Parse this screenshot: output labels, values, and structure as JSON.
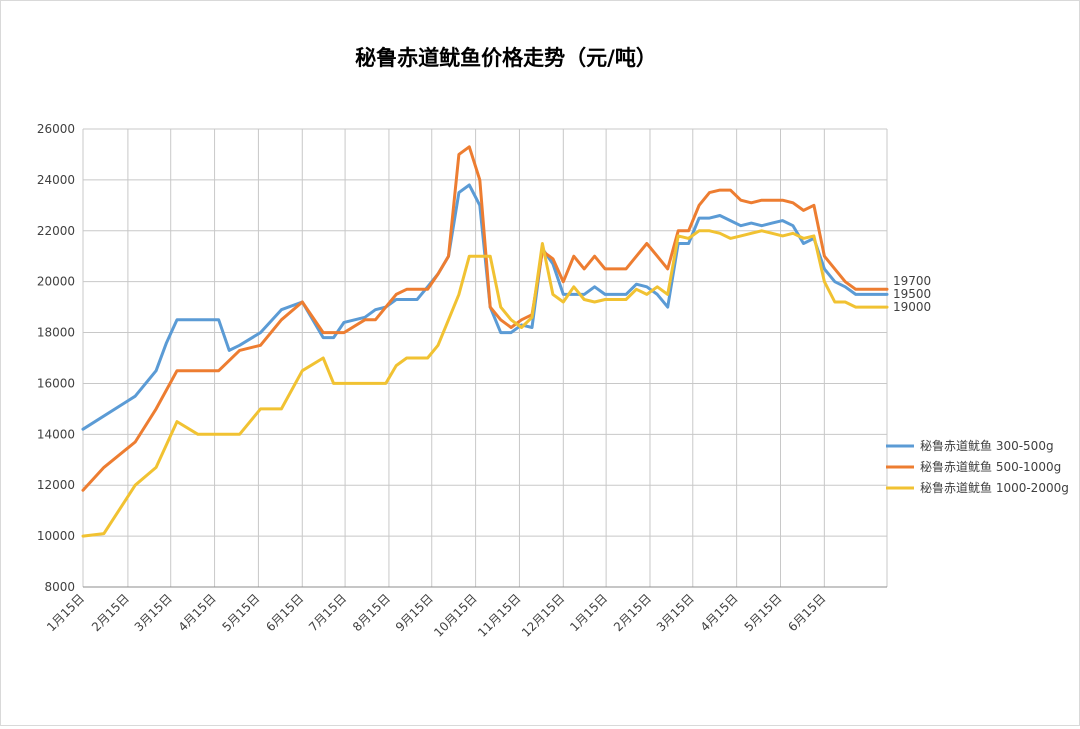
{
  "chart_data": {
    "type": "line",
    "title": "秘鲁赤道鱿鱼价格走势（元/吨）",
    "xlabel": "",
    "ylabel": "",
    "ylim": [
      8000,
      26000
    ],
    "yticks": [
      8000,
      10000,
      12000,
      14000,
      16000,
      18000,
      20000,
      22000,
      24000,
      26000
    ],
    "grid": true,
    "legend_position": "right",
    "x_range": [
      0,
      77
    ],
    "x_ticks": [
      {
        "x": 0,
        "label": "1月15日"
      },
      {
        "x": 4.3,
        "label": "2月15日"
      },
      {
        "x": 8.4,
        "label": "3月15日"
      },
      {
        "x": 12.6,
        "label": "4月15日"
      },
      {
        "x": 16.8,
        "label": "5月15日"
      },
      {
        "x": 21,
        "label": "6月15日"
      },
      {
        "x": 25.1,
        "label": "7月15日"
      },
      {
        "x": 29.3,
        "label": "8月15日"
      },
      {
        "x": 33.4,
        "label": "9月15日"
      },
      {
        "x": 37.6,
        "label": "10月15日"
      },
      {
        "x": 41.8,
        "label": "11月15日"
      },
      {
        "x": 46,
        "label": "12月15日"
      },
      {
        "x": 50.1,
        "label": "1月15日"
      },
      {
        "x": 54.3,
        "label": "2月15日"
      },
      {
        "x": 58.4,
        "label": "3月15日"
      },
      {
        "x": 62.6,
        "label": "4月15日"
      },
      {
        "x": 66.8,
        "label": "5月15日"
      },
      {
        "x": 71,
        "label": "6月15日"
      }
    ],
    "series": [
      {
        "name": "秘鲁赤道鱿鱼 300-500g",
        "color": "#5b9bd5",
        "end_label": "19500",
        "x": [
          0,
          5,
          7,
          8,
          9,
          11,
          13,
          14,
          15,
          17,
          19,
          21,
          23,
          24,
          25,
          27,
          28,
          29,
          30,
          31,
          32,
          33,
          34,
          35,
          36,
          37,
          38,
          39,
          40,
          41,
          42,
          43,
          44,
          45,
          46,
          47,
          48,
          49,
          50,
          51,
          52,
          53,
          54,
          55,
          56,
          57,
          58,
          59,
          60,
          61,
          62,
          63,
          64,
          65,
          66,
          67,
          68,
          69,
          70,
          71,
          72,
          73,
          74,
          75,
          76,
          77
        ],
        "values": [
          14200,
          15500,
          16500,
          17600,
          18500,
          18500,
          18500,
          17300,
          17500,
          18000,
          18900,
          19200,
          17800,
          17800,
          18400,
          18600,
          18900,
          19000,
          19300,
          19300,
          19300,
          19800,
          20300,
          21000,
          23500,
          23800,
          23000,
          19000,
          18000,
          18000,
          18300,
          18200,
          21300,
          20700,
          19500,
          19500,
          19500,
          19800,
          19500,
          19500,
          19500,
          19900,
          19800,
          19500,
          19000,
          21500,
          21500,
          22500,
          22500,
          22600,
          22400,
          22200,
          22300,
          22200,
          22300,
          22400,
          22200,
          21500,
          21700,
          20500,
          20000,
          19800,
          19500,
          19500,
          19500,
          19500
        ]
      },
      {
        "name": "秘鲁赤道鱿鱼 500-1000g",
        "color": "#ed7d31",
        "end_label": "19700",
        "x": [
          0,
          2,
          5,
          7,
          9,
          11,
          13,
          15,
          17,
          19,
          21,
          23,
          24,
          25,
          27,
          28,
          29,
          30,
          31,
          32,
          33,
          34,
          35,
          36,
          37,
          38,
          39,
          40,
          41,
          42,
          43,
          44,
          45,
          46,
          47,
          48,
          49,
          50,
          51,
          52,
          53,
          54,
          55,
          56,
          57,
          58,
          59,
          60,
          61,
          62,
          63,
          64,
          65,
          66,
          67,
          68,
          69,
          70,
          71,
          72,
          73,
          74,
          75,
          76,
          77
        ],
        "values": [
          11800,
          12700,
          13700,
          15000,
          16500,
          16500,
          16500,
          17300,
          17500,
          18500,
          19200,
          18000,
          18000,
          18000,
          18500,
          18500,
          19000,
          19500,
          19700,
          19700,
          19700,
          20300,
          21000,
          25000,
          25300,
          24000,
          19000,
          18500,
          18200,
          18500,
          18700,
          21200,
          20900,
          20000,
          21000,
          20500,
          21000,
          20500,
          20500,
          20500,
          21000,
          21500,
          21000,
          20500,
          22000,
          22000,
          23000,
          23500,
          23600,
          23600,
          23200,
          23100,
          23200,
          23200,
          23200,
          23100,
          22800,
          23000,
          21000,
          20500,
          20000,
          19700,
          19700,
          19700,
          19700
        ]
      },
      {
        "name": "秘鲁赤道鱿鱼 1000-2000g",
        "color": "#f1c232",
        "end_label": "19000",
        "x": [
          0,
          2,
          5,
          7,
          9,
          11,
          13,
          15,
          17,
          19,
          21,
          23,
          24,
          25,
          27,
          28,
          29,
          30,
          31,
          32,
          33,
          34,
          35,
          36,
          37,
          38,
          39,
          40,
          41,
          42,
          43,
          44,
          45,
          46,
          47,
          48,
          49,
          50,
          51,
          52,
          53,
          54,
          55,
          56,
          57,
          58,
          59,
          60,
          61,
          62,
          63,
          64,
          65,
          66,
          67,
          68,
          69,
          70,
          71,
          72,
          73,
          74,
          75,
          76,
          77
        ],
        "values": [
          10000,
          10100,
          12000,
          12700,
          14500,
          14000,
          14000,
          14000,
          15000,
          15000,
          16500,
          17000,
          16000,
          16000,
          16000,
          16000,
          16000,
          16700,
          17000,
          17000,
          17000,
          17500,
          18500,
          19500,
          21000,
          21000,
          21000,
          19000,
          18500,
          18200,
          18600,
          21500,
          19500,
          19200,
          19800,
          19300,
          19200,
          19300,
          19300,
          19300,
          19700,
          19500,
          19800,
          19500,
          21800,
          21700,
          22000,
          22000,
          21900,
          21700,
          21800,
          21900,
          22000,
          21900,
          21800,
          21900,
          21700,
          21800,
          20000,
          19200,
          19200,
          19000,
          19000,
          19000,
          19000
        ]
      }
    ]
  }
}
